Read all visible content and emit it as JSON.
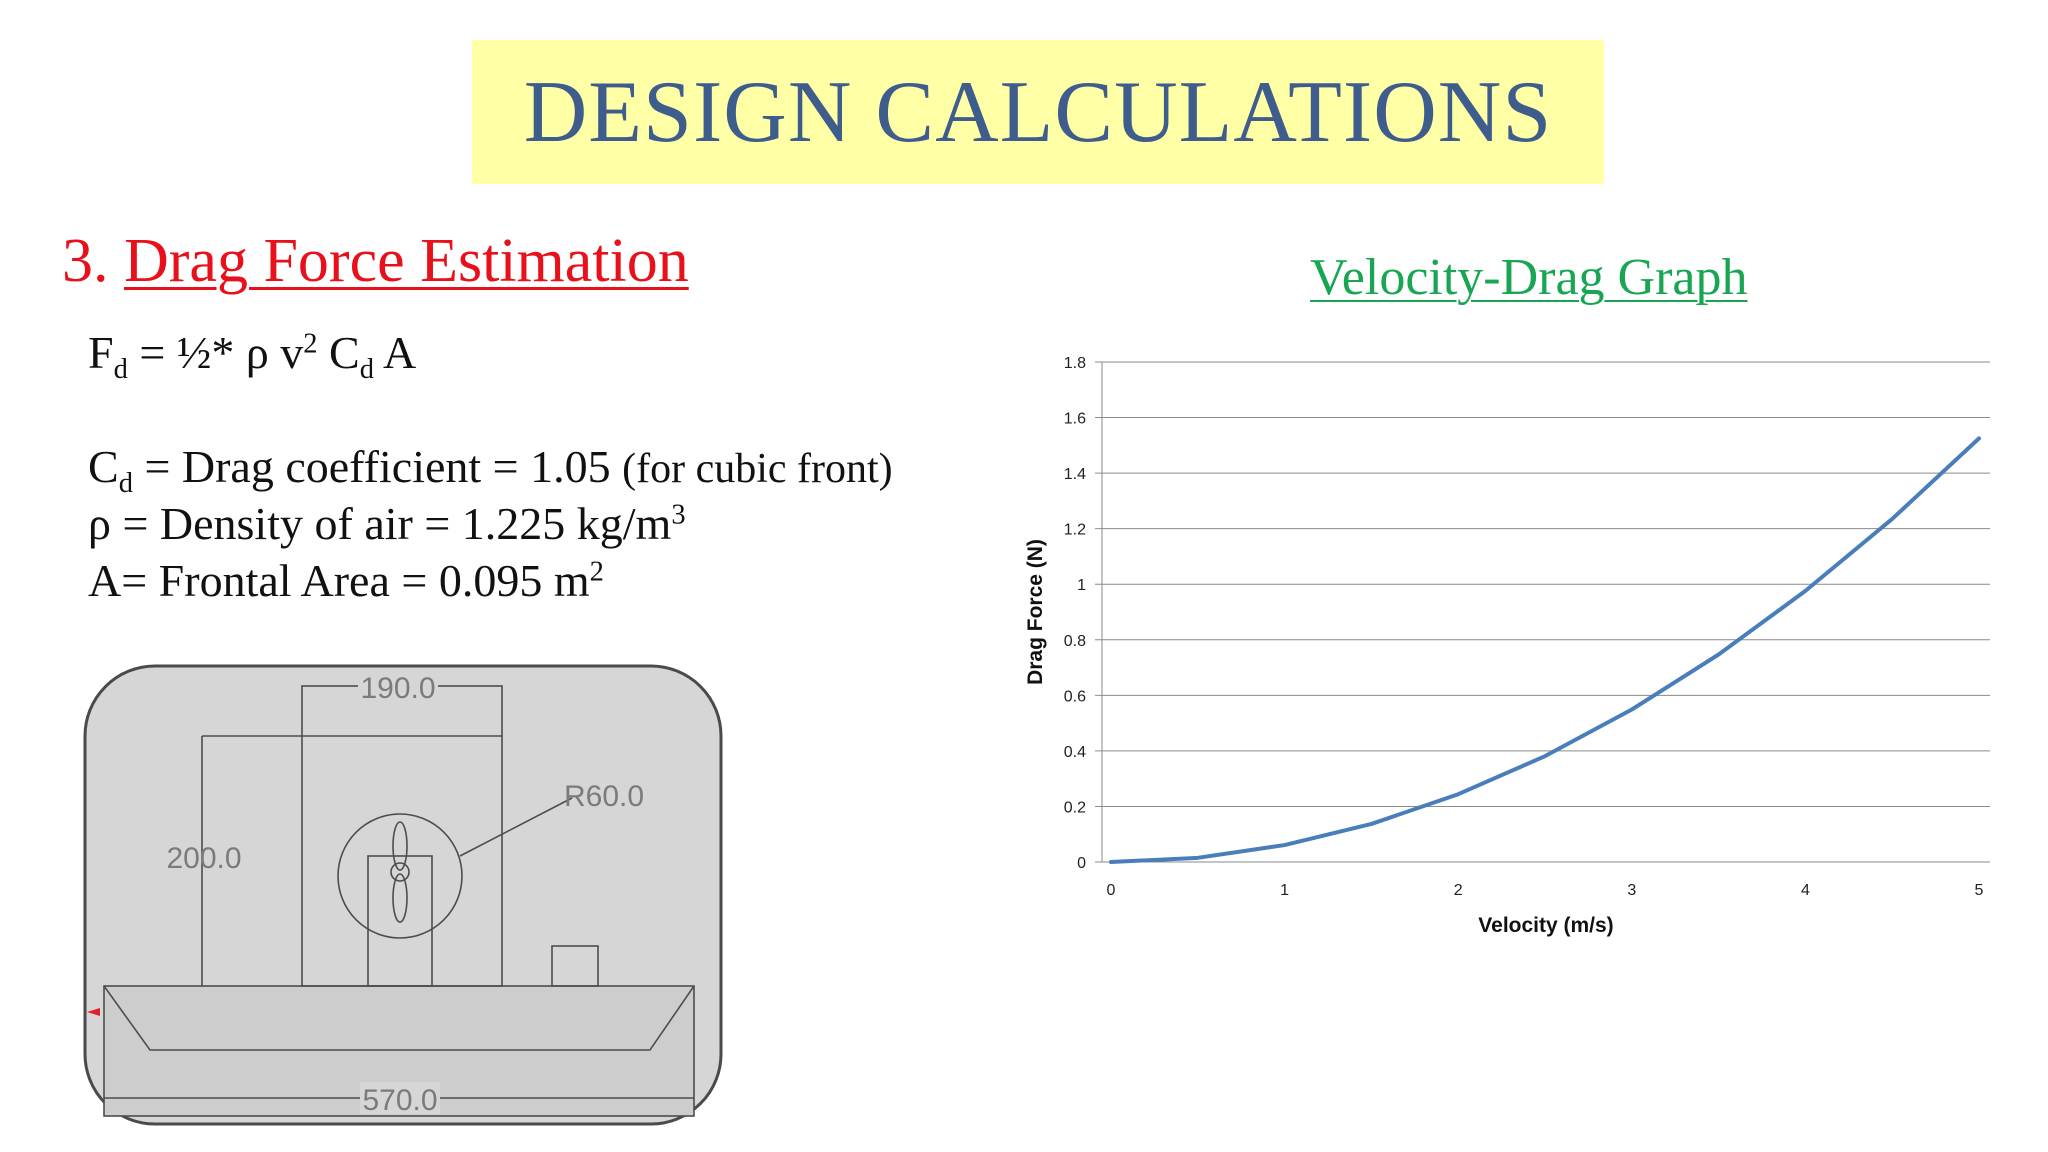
{
  "slide": {
    "title": "DESIGN CALCULATIONS",
    "section_number": "3.",
    "section_title": "Drag Force Estimation"
  },
  "formula": {
    "F": "F",
    "F_sub": "d",
    "eq": " = ",
    "half": "½* ρ v",
    "v_sup": "2",
    "C": " C",
    "C_sub": "d",
    "A": " A"
  },
  "definitions": {
    "cd": {
      "sym": "C",
      "sub": "d",
      "text": " = Drag coefficient =  1.05 ",
      "note": "(for cubic front)"
    },
    "rho": {
      "text": "ρ = Density of air = 1.225 kg/m",
      "sup": "3"
    },
    "area": {
      "text": "A= Frontal Area = 0.095 m",
      "sup": "2"
    }
  },
  "drawing": {
    "dim_width": "190.0",
    "dim_height": "200.0",
    "dim_radius": "R60.0",
    "dim_length": "570.0"
  },
  "chart_data": {
    "type": "line",
    "title": "Velocity-Drag Graph",
    "xlabel": "Velocity (m/s)",
    "ylabel": "Drag Force (N)",
    "xlim": [
      0,
      5
    ],
    "ylim": [
      0,
      1.8
    ],
    "xticks": [
      "0",
      "1",
      "2",
      "3",
      "4",
      "5"
    ],
    "yticks": [
      "0",
      "0.2",
      "0.4",
      "0.6",
      "0.8",
      "1",
      "1.2",
      "1.4",
      "1.6",
      "1.8"
    ],
    "grid": true,
    "legend": "none",
    "series": [
      {
        "color": "#4a7ebb",
        "x": [
          0,
          0.5,
          1,
          1.5,
          2,
          2.5,
          3,
          3.5,
          4,
          4.5,
          5
        ],
        "y": [
          0,
          0.015,
          0.061,
          0.137,
          0.244,
          0.381,
          0.549,
          0.747,
          0.976,
          1.235,
          1.525
        ]
      }
    ]
  }
}
